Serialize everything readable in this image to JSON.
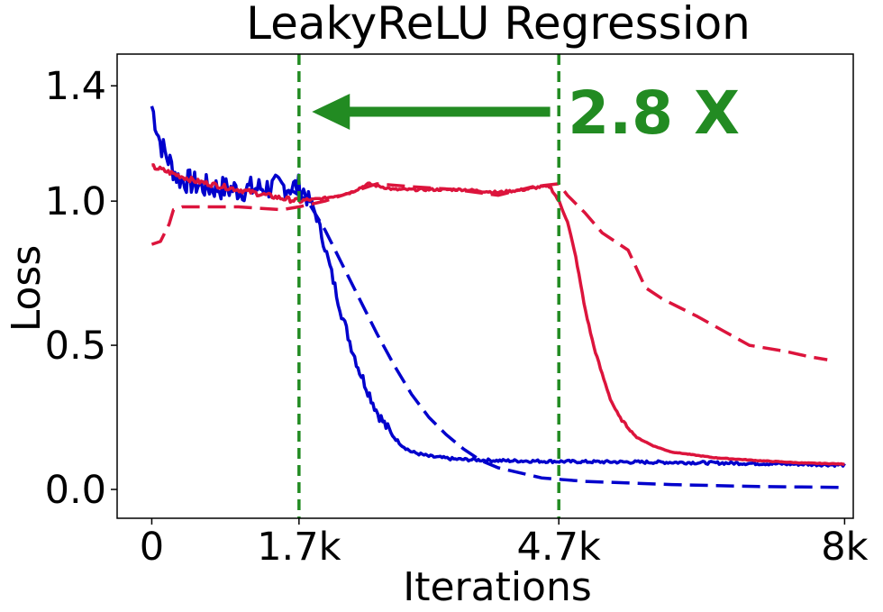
{
  "chart_data": {
    "type": "line",
    "title": "LeakyReLU Regression",
    "xlabel": "Iterations",
    "ylabel": "Loss",
    "xlim": [
      -0.4,
      8.1
    ],
    "ylim": [
      -0.1,
      1.51
    ],
    "x_ticks": [
      {
        "value": 0,
        "label": "0"
      },
      {
        "value": 1.7,
        "label": "1.7k"
      },
      {
        "value": 4.7,
        "label": "4.7k"
      },
      {
        "value": 8,
        "label": "8k"
      }
    ],
    "y_ticks": [
      {
        "value": 0.0,
        "label": "0.0"
      },
      {
        "value": 0.5,
        "label": "0.5"
      },
      {
        "value": 1.0,
        "label": "1.0"
      },
      {
        "value": 1.4,
        "label": "1.4"
      }
    ],
    "grid": false,
    "legend": "none",
    "vlines": [
      {
        "x": 1.7,
        "color": "#228B22",
        "style": "dashed"
      },
      {
        "x": 4.7,
        "color": "#228B22",
        "style": "dashed"
      }
    ],
    "annotation": {
      "text": "2.8 X",
      "color": "#228B22",
      "arrow_from_x": 4.6,
      "arrow_to_x": 1.85,
      "arrow_y": 1.31
    },
    "series": [
      {
        "color": "#0000CC",
        "style": "solid",
        "noise": 0.04,
        "x": [
          0,
          0.1,
          0.3,
          0.6,
          1.0,
          1.5,
          1.7,
          1.8,
          1.9,
          2.0,
          2.1,
          2.2,
          2.3,
          2.4,
          2.5,
          2.6,
          2.7,
          2.8,
          2.9,
          3.0,
          3.2,
          3.5,
          4.0,
          4.5,
          5.0,
          6.0,
          7.0,
          8.0
        ],
        "y": [
          1.33,
          1.2,
          1.08,
          1.05,
          1.04,
          1.05,
          1.05,
          1.02,
          0.95,
          0.84,
          0.72,
          0.6,
          0.5,
          0.41,
          0.34,
          0.27,
          0.22,
          0.18,
          0.15,
          0.13,
          0.115,
          0.105,
          0.1,
          0.098,
          0.096,
          0.094,
          0.09,
          0.085
        ]
      },
      {
        "color": "#0000CC",
        "style": "dashed",
        "noise": 0,
        "x": [
          1.6,
          1.8,
          2.0,
          2.2,
          2.4,
          2.6,
          2.8,
          3.0,
          3.2,
          3.4,
          3.6,
          3.8,
          4.0,
          4.5,
          5.0,
          6.0,
          7.0,
          8.0
        ],
        "y": [
          1.04,
          1.0,
          0.9,
          0.78,
          0.66,
          0.54,
          0.43,
          0.33,
          0.25,
          0.19,
          0.14,
          0.1,
          0.075,
          0.04,
          0.028,
          0.017,
          0.01,
          0.007
        ]
      },
      {
        "color": "#DC143C",
        "style": "solid",
        "noise": 0.008,
        "x": [
          0,
          0.5,
          1.0,
          1.5,
          1.7,
          2.0,
          2.3,
          2.5,
          2.8,
          3.2,
          3.6,
          4.0,
          4.3,
          4.5,
          4.6,
          4.7,
          4.8,
          4.9,
          5.0,
          5.1,
          5.2,
          5.3,
          5.4,
          5.6,
          5.8,
          6.0,
          6.5,
          7.0,
          7.5,
          8.0
        ],
        "y": [
          1.12,
          1.07,
          1.04,
          1.01,
          1.0,
          1.01,
          1.03,
          1.06,
          1.04,
          1.04,
          1.04,
          1.03,
          1.04,
          1.05,
          1.05,
          1.0,
          0.93,
          0.8,
          0.63,
          0.5,
          0.4,
          0.31,
          0.25,
          0.18,
          0.15,
          0.13,
          0.11,
          0.1,
          0.092,
          0.088
        ]
      },
      {
        "color": "#DC143C",
        "style": "dashed",
        "noise": 0,
        "x": [
          0,
          0.1,
          0.2,
          0.25,
          0.35,
          0.5,
          1.0,
          1.5,
          1.7,
          2.0,
          2.4,
          2.6,
          3.0,
          3.5,
          4.0,
          4.4,
          4.7,
          4.8,
          5.0,
          5.2,
          5.5,
          5.7,
          5.9,
          6.1,
          6.3,
          6.6,
          6.9,
          7.1,
          7.3,
          7.6,
          7.8
        ],
        "y": [
          0.85,
          0.86,
          0.92,
          0.97,
          0.98,
          0.98,
          0.98,
          0.97,
          0.98,
          1.0,
          1.04,
          1.06,
          1.05,
          1.04,
          1.02,
          1.05,
          1.06,
          1.02,
          0.96,
          0.89,
          0.83,
          0.7,
          0.66,
          0.63,
          0.6,
          0.55,
          0.5,
          0.49,
          0.48,
          0.46,
          0.45
        ]
      }
    ]
  }
}
